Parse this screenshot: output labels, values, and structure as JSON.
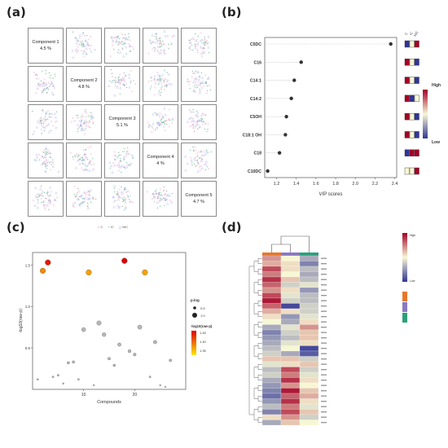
{
  "labels": {
    "a": "(a)",
    "b": "(b)",
    "c": "(c)",
    "d": "(d)"
  },
  "colors": {
    "group_C": "#e0457b",
    "group_IC": "#23a05a",
    "group_NIC": "#7a7adf",
    "vip_point": "#333333",
    "heat_low": "#313695",
    "heat_mid": "#f7f7d4",
    "heat_high": "#a50026",
    "bubble_low": "#ffe600",
    "bubble_high": "#e00000",
    "bubble_nonsig": "#b8b8b8"
  },
  "panel_a": {
    "components": [
      {
        "name": "Component 1",
        "variance": "4.5 %"
      },
      {
        "name": "Component 2",
        "variance": "4.8 %"
      },
      {
        "name": "Component 3",
        "variance": "5.1 %"
      },
      {
        "name": "Component 4",
        "variance": "4 %"
      },
      {
        "name": "Component 5",
        "variance": "4.7 %"
      }
    ],
    "legend": [
      "C",
      "IC",
      "NIC"
    ]
  },
  "chart_data": [
    {
      "type": "scatter",
      "panel": "a",
      "description_kind": "pairs scatter matrix",
      "series": [
        {
          "name": "C",
          "points": "random"
        },
        {
          "name": "IC",
          "points": "random"
        },
        {
          "name": "NIC",
          "points": "random"
        }
      ]
    },
    {
      "type": "scatter",
      "panel": "b",
      "xlabel": "VIP scores",
      "xticks": [
        1.2,
        1.4,
        1.6,
        1.8,
        2.0,
        2.2,
        2.4
      ],
      "xlim": [
        1.08,
        2.42
      ],
      "group_labels": [
        "C",
        "IC",
        "NIC"
      ],
      "colorbar": {
        "high": "High",
        "low": "Low"
      },
      "categories": [
        "C5DC",
        "C16",
        "C14:1",
        "C14:2",
        "C5OH",
        "C18:1 OH",
        "C18",
        "C10DC"
      ],
      "values": [
        2.36,
        1.45,
        1.38,
        1.35,
        1.3,
        1.29,
        1.23,
        1.11
      ],
      "heat_levels": [
        [
          "low",
          "mid",
          "high"
        ],
        [
          "high",
          "mid",
          "low"
        ],
        [
          "high",
          "mid",
          "low"
        ],
        [
          "high",
          "low",
          "mid"
        ],
        [
          "high",
          "mid",
          "low"
        ],
        [
          "high",
          "mid",
          "low"
        ],
        [
          "low",
          "high",
          "high"
        ],
        [
          "mid",
          "mid",
          "high"
        ]
      ]
    },
    {
      "type": "scatter",
      "panel": "c",
      "xlabel": "Compounds",
      "ylabel": "-log10(raw-p)",
      "xticks": [
        10,
        20
      ],
      "yticks": [
        0.5,
        1.0,
        1.5
      ],
      "xlim": [
        0,
        30
      ],
      "ylim": [
        0,
        1.65
      ],
      "legend_size_title": "p.log",
      "legend_size_values": [
        "0.5",
        "1.0"
      ],
      "legend_color_title": "-log10(raw-p)",
      "legend_color_values": [
        "1.45",
        "1.40",
        "1.35"
      ],
      "points": [
        {
          "x": 1,
          "y": 0.12
        },
        {
          "x": 2,
          "y": 1.43
        },
        {
          "x": 3,
          "y": 1.53
        },
        {
          "x": 4,
          "y": 0.15
        },
        {
          "x": 5,
          "y": 0.17
        },
        {
          "x": 6,
          "y": 0.07
        },
        {
          "x": 7,
          "y": 0.32
        },
        {
          "x": 8,
          "y": 0.33
        },
        {
          "x": 9,
          "y": 0.12
        },
        {
          "x": 10,
          "y": 0.72
        },
        {
          "x": 11,
          "y": 1.41
        },
        {
          "x": 12,
          "y": 0.05
        },
        {
          "x": 13,
          "y": 0.8
        },
        {
          "x": 14,
          "y": 0.66
        },
        {
          "x": 15,
          "y": 0.37
        },
        {
          "x": 16,
          "y": 0.29
        },
        {
          "x": 17,
          "y": 0.54
        },
        {
          "x": 18,
          "y": 1.55
        },
        {
          "x": 19,
          "y": 0.46
        },
        {
          "x": 20,
          "y": 0.42
        },
        {
          "x": 21,
          "y": 0.75
        },
        {
          "x": 22,
          "y": 1.41
        },
        {
          "x": 23,
          "y": 0.15
        },
        {
          "x": 24,
          "y": 0.57
        },
        {
          "x": 25,
          "y": 0.05
        },
        {
          "x": 26,
          "y": 0.03
        },
        {
          "x": 27,
          "y": 0.35
        }
      ]
    },
    {
      "type": "heatmap",
      "panel": "d",
      "columns": 3,
      "column_colors": [
        "#e7772c",
        "#8a78c4",
        "#2aa07a"
      ],
      "legend_values": [
        "High",
        "Low"
      ],
      "rows": [
        [
          0.7,
          0.5,
          0.3
        ],
        [
          0.65,
          0.55,
          0.2
        ],
        [
          0.85,
          0.55,
          0.35
        ],
        [
          0.75,
          0.5,
          0.3
        ],
        [
          0.9,
          0.6,
          0.35
        ],
        [
          0.8,
          0.4,
          0.45
        ],
        [
          0.7,
          0.55,
          0.25
        ],
        [
          0.85,
          0.45,
          0.35
        ],
        [
          0.95,
          0.4,
          0.35
        ],
        [
          0.8,
          0.05,
          0.4
        ],
        [
          0.65,
          0.55,
          0.4
        ],
        [
          0.55,
          0.25,
          0.45
        ],
        [
          0.5,
          0.3,
          0.55
        ],
        [
          0.3,
          0.45,
          0.7
        ],
        [
          0.2,
          0.4,
          0.6
        ],
        [
          0.25,
          0.35,
          0.6
        ],
        [
          0.3,
          0.45,
          0.55
        ],
        [
          0.35,
          0.5,
          0.05
        ],
        [
          0.4,
          0.3,
          0.1
        ],
        [
          0.6,
          0.6,
          0.4
        ],
        [
          0.45,
          0.55,
          0.6
        ],
        [
          0.35,
          0.85,
          0.4
        ],
        [
          0.4,
          0.75,
          0.45
        ],
        [
          0.3,
          0.9,
          0.55
        ],
        [
          0.25,
          0.7,
          0.5
        ],
        [
          0.2,
          0.95,
          0.6
        ],
        [
          0.15,
          0.8,
          0.65
        ],
        [
          0.25,
          0.9,
          0.55
        ],
        [
          0.35,
          0.75,
          0.45
        ],
        [
          0.2,
          0.85,
          0.6
        ],
        [
          0.55,
          0.7,
          0.4
        ],
        [
          0.3,
          0.6,
          0.5
        ]
      ]
    }
  ]
}
